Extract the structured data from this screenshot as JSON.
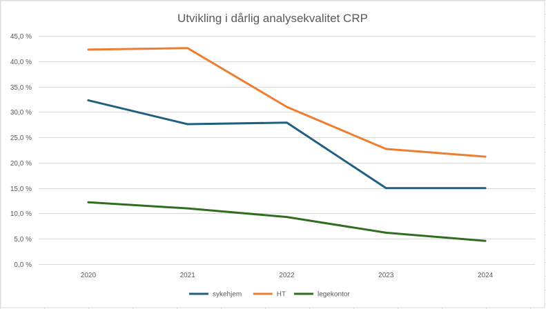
{
  "chart_data": {
    "type": "line",
    "title": "Utvikling i dårlig analysekvalitet CRP",
    "xlabel": "",
    "ylabel": "",
    "categories": [
      "2020",
      "2021",
      "2022",
      "2023",
      "2024"
    ],
    "ylim": [
      0,
      45
    ],
    "yticks": [
      0,
      5,
      10,
      15,
      20,
      25,
      30,
      35,
      40,
      45
    ],
    "ytick_labels": [
      "0,0 %",
      "5,0 %",
      "10,0 %",
      "15,0 %",
      "20,0 %",
      "25,0 %",
      "30,0 %",
      "35,0 %",
      "40,0 %",
      "45,0 %"
    ],
    "grid": true,
    "legend_position": "bottom",
    "series": [
      {
        "name": "sykehjem",
        "color": "#1f5f7f",
        "values": [
          32.3,
          27.6,
          27.9,
          15.0,
          15.0
        ]
      },
      {
        "name": "HT",
        "color": "#ed7d31",
        "values": [
          42.3,
          42.6,
          31.0,
          22.7,
          21.2
        ]
      },
      {
        "name": "legekontor",
        "color": "#2e6e1e",
        "values": [
          12.2,
          11.0,
          9.3,
          6.2,
          4.6
        ]
      }
    ]
  }
}
